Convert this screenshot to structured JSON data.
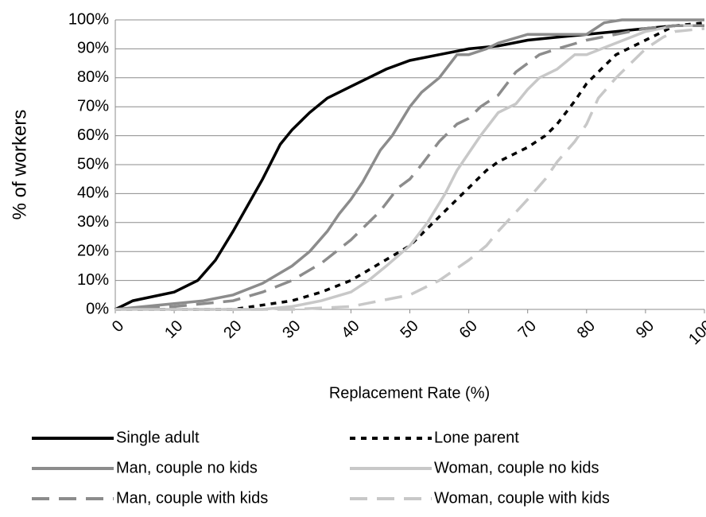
{
  "chart_data": {
    "type": "line",
    "x_label": "Replacement Rate (%)",
    "y_label": "% of workers",
    "xlim": [
      0,
      100
    ],
    "ylim": [
      0,
      100
    ],
    "xticks": [
      0,
      10,
      20,
      30,
      40,
      50,
      60,
      70,
      80,
      90,
      100
    ],
    "yticks": [
      {
        "value": 0,
        "label": "0%"
      },
      {
        "value": 10,
        "label": "10%"
      },
      {
        "value": 20,
        "label": "20%"
      },
      {
        "value": 30,
        "label": "30%"
      },
      {
        "value": 40,
        "label": "40%"
      },
      {
        "value": 50,
        "label": "50%"
      },
      {
        "value": 60,
        "label": "60%"
      },
      {
        "value": 70,
        "label": "70%"
      },
      {
        "value": 80,
        "label": "80%"
      },
      {
        "value": 90,
        "label": "90%"
      },
      {
        "value": 100,
        "label": "100%"
      }
    ],
    "grid": true,
    "legend": "bottom",
    "series": [
      {
        "name": "Single adult",
        "color": "#000000",
        "dash": "solid",
        "x": [
          0,
          3,
          10,
          14,
          17,
          20,
          25,
          28,
          30,
          33,
          36,
          40,
          43,
          46,
          50,
          55,
          60,
          65,
          70,
          75,
          80,
          85,
          90,
          95,
          100
        ],
        "values": [
          0,
          3,
          6,
          10,
          17,
          27,
          45,
          57,
          62,
          68,
          73,
          77,
          80,
          83,
          86,
          88,
          90,
          91,
          93,
          94,
          95,
          96,
          97,
          98,
          98
        ]
      },
      {
        "name": "Lone parent",
        "color": "#000000",
        "dash": "dotted",
        "x": [
          0,
          20,
          30,
          35,
          40,
          45,
          50,
          55,
          60,
          63,
          65,
          70,
          73,
          75,
          78,
          80,
          83,
          85,
          90,
          95,
          100
        ],
        "values": [
          0,
          0,
          3,
          6,
          10,
          16,
          22,
          32,
          42,
          48,
          51,
          56,
          60,
          64,
          72,
          78,
          84,
          88,
          93,
          98,
          99
        ]
      },
      {
        "name": "Man, couple no kids",
        "color": "#8c8c8c",
        "dash": "solid",
        "x": [
          0,
          10,
          15,
          20,
          25,
          30,
          33,
          36,
          38,
          40,
          42,
          45,
          47,
          50,
          52,
          55,
          58,
          60,
          63,
          65,
          70,
          75,
          80,
          83,
          86,
          90,
          100
        ],
        "values": [
          0,
          2,
          3,
          5,
          9,
          15,
          20,
          27,
          33,
          38,
          44,
          55,
          60,
          70,
          75,
          80,
          88,
          88,
          90,
          92,
          95,
          95,
          95,
          99,
          100,
          100,
          100
        ]
      },
      {
        "name": "Woman, couple no kids",
        "color": "#c8c8c8",
        "dash": "solid",
        "x": [
          0,
          25,
          30,
          35,
          40,
          43,
          46,
          50,
          53,
          56,
          58,
          60,
          62,
          65,
          68,
          70,
          72,
          75,
          78,
          80,
          85,
          90,
          95,
          100
        ],
        "values": [
          0,
          0,
          1,
          3,
          6,
          10,
          15,
          22,
          30,
          40,
          48,
          54,
          60,
          68,
          71,
          76,
          80,
          83,
          88,
          88,
          92,
          96,
          98,
          98
        ]
      },
      {
        "name": "Man, couple with kids",
        "color": "#8c8c8c",
        "dash": "dashed",
        "x": [
          0,
          10,
          20,
          25,
          30,
          35,
          40,
          45,
          48,
          50,
          52,
          55,
          58,
          60,
          62,
          65,
          68,
          70,
          72,
          75,
          80,
          85,
          90,
          95,
          100
        ],
        "values": [
          0,
          1,
          3,
          6,
          10,
          16,
          24,
          34,
          42,
          45,
          50,
          58,
          64,
          66,
          70,
          74,
          82,
          85,
          88,
          90,
          93,
          95,
          97,
          98,
          98
        ]
      },
      {
        "name": "Woman, couple with kids",
        "color": "#c8c8c8",
        "dash": "dashed",
        "x": [
          0,
          30,
          40,
          45,
          50,
          55,
          60,
          63,
          65,
          70,
          73,
          75,
          78,
          80,
          82,
          85,
          88,
          90,
          93,
          95,
          100
        ],
        "values": [
          0,
          0,
          1,
          3,
          5,
          10,
          17,
          22,
          27,
          38,
          45,
          51,
          58,
          64,
          73,
          80,
          86,
          90,
          94,
          96,
          97
        ]
      }
    ]
  }
}
